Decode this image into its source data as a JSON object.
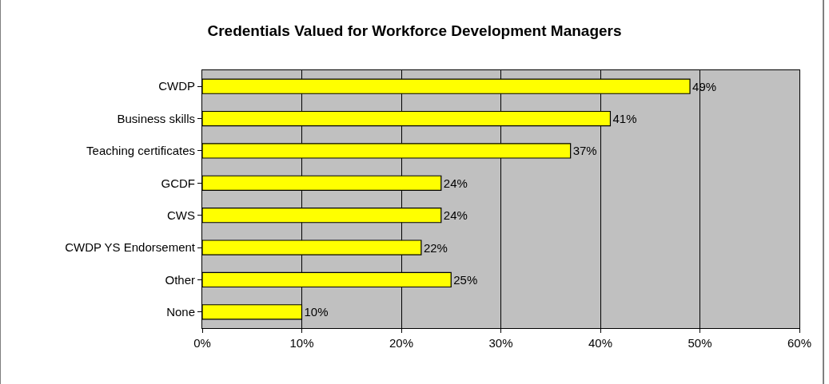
{
  "chart_data": {
    "type": "bar",
    "title": "Credentials Valued for Workforce Development Managers",
    "orientation": "horizontal",
    "categories": [
      "CWDP",
      "Business skills",
      "Teaching certificates",
      "GCDF",
      "CWS",
      "CWDP YS Endorsement",
      "Other",
      "None"
    ],
    "values": [
      49,
      41,
      37,
      24,
      24,
      22,
      25,
      10
    ],
    "value_labels": [
      "49%",
      "41%",
      "37%",
      "24%",
      "24%",
      "22%",
      "25%",
      "10%"
    ],
    "color": "#ffff00",
    "xlim": [
      0,
      60
    ],
    "xticks": [
      {
        "value": 0,
        "label": "0%"
      },
      {
        "value": 10,
        "label": "10%"
      },
      {
        "value": 20,
        "label": "20%"
      },
      {
        "value": 30,
        "label": "30%"
      },
      {
        "value": 40,
        "label": "40%"
      },
      {
        "value": 50,
        "label": "50%"
      },
      {
        "value": 60,
        "label": "60%"
      }
    ],
    "grid": "x",
    "legend": false
  }
}
